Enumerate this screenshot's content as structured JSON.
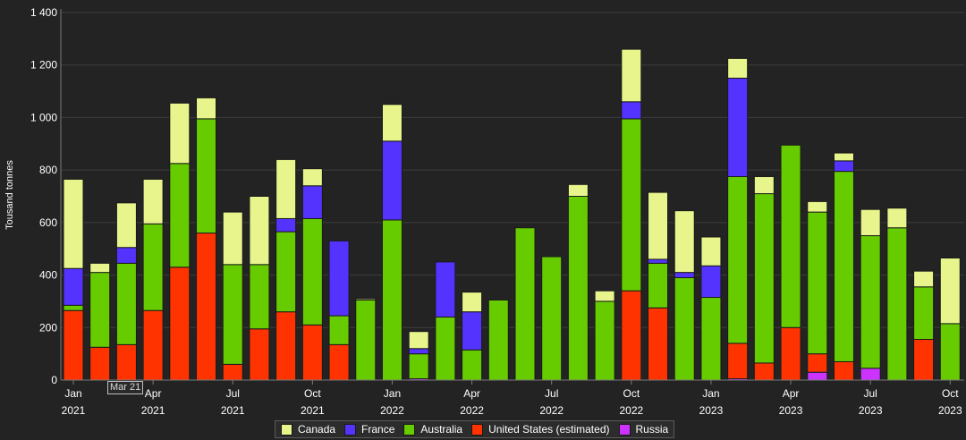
{
  "chart_data": {
    "type": "bar",
    "stacked": true,
    "ylabel": "Tousand tonnes",
    "ylim": [
      0,
      1400
    ],
    "yticks": [
      0,
      200,
      400,
      600,
      800,
      1000,
      1200,
      1400
    ],
    "ytick_labels": [
      "0",
      "200",
      "400",
      "600",
      "800",
      "1 000",
      "1 200",
      "1 400"
    ],
    "grid": true,
    "legend_position": "bottom-center",
    "categories": [
      "Jan 2021",
      "Feb 2021",
      "Mar 2021",
      "Apr 2021",
      "May 2021",
      "Jun 2021",
      "Jul 2021",
      "Aug 2021",
      "Sep 2021",
      "Oct 2021",
      "Nov 2021",
      "Dec 2021",
      "Jan 2022",
      "Feb 2022",
      "Mar 2022",
      "Apr 2022",
      "May 2022",
      "Jun 2022",
      "Jul 2022",
      "Aug 2022",
      "Sep 2022",
      "Oct 2022",
      "Nov 2022",
      "Dec 2022",
      "Jan 2023",
      "Feb 2023",
      "Mar 2023",
      "Apr 2023",
      "May 2023",
      "Jun 2023",
      "Jul 2023",
      "Aug 2023",
      "Sep 2023",
      "Oct 2023"
    ],
    "xticks": [
      {
        "index": 0,
        "month": "Jan",
        "year": "2021"
      },
      {
        "index": 3,
        "month": "Apr",
        "year": "2021"
      },
      {
        "index": 6,
        "month": "Jul",
        "year": "2021"
      },
      {
        "index": 9,
        "month": "Oct",
        "year": "2021"
      },
      {
        "index": 12,
        "month": "Jan",
        "year": "2022"
      },
      {
        "index": 15,
        "month": "Apr",
        "year": "2022"
      },
      {
        "index": 18,
        "month": "Jul",
        "year": "2022"
      },
      {
        "index": 21,
        "month": "Oct",
        "year": "2022"
      },
      {
        "index": 24,
        "month": "Jan",
        "year": "2023"
      },
      {
        "index": 27,
        "month": "Apr",
        "year": "2023"
      },
      {
        "index": 30,
        "month": "Jul",
        "year": "2023"
      },
      {
        "index": 33,
        "month": "Oct",
        "year": "2023"
      }
    ],
    "series": [
      {
        "name": "Russia",
        "color": "#cc33ff",
        "values": [
          0,
          0,
          0,
          0,
          0,
          0,
          0,
          0,
          0,
          0,
          0,
          0,
          0,
          5,
          0,
          0,
          0,
          0,
          0,
          0,
          0,
          0,
          0,
          0,
          0,
          5,
          0,
          0,
          30,
          0,
          45,
          0,
          0,
          0
        ]
      },
      {
        "name": "United States (estimated)",
        "color": "#ff3300",
        "values": [
          265,
          125,
          135,
          265,
          430,
          560,
          60,
          195,
          260,
          210,
          135,
          0,
          0,
          0,
          0,
          0,
          0,
          0,
          0,
          0,
          0,
          340,
          275,
          0,
          0,
          135,
          65,
          200,
          70,
          70,
          0,
          0,
          155,
          0
        ]
      },
      {
        "name": "Australia",
        "color": "#66cc00",
        "values": [
          20,
          285,
          310,
          330,
          395,
          435,
          380,
          245,
          305,
          405,
          110,
          305,
          610,
          95,
          240,
          115,
          305,
          580,
          470,
          700,
          300,
          655,
          170,
          390,
          315,
          635,
          645,
          695,
          540,
          725,
          505,
          580,
          200,
          215
        ]
      },
      {
        "name": "France",
        "color": "#5533ff",
        "values": [
          140,
          0,
          60,
          0,
          0,
          0,
          0,
          0,
          50,
          125,
          285,
          0,
          300,
          20,
          210,
          145,
          0,
          0,
          0,
          0,
          0,
          65,
          15,
          20,
          120,
          375,
          0,
          0,
          0,
          40,
          0,
          0,
          0,
          0
        ]
      },
      {
        "name": "Canada",
        "color": "#e8f58c",
        "values": [
          340,
          35,
          170,
          170,
          230,
          80,
          200,
          260,
          225,
          65,
          0,
          5,
          140,
          65,
          0,
          75,
          0,
          0,
          0,
          45,
          40,
          200,
          255,
          235,
          110,
          75,
          65,
          0,
          40,
          30,
          100,
          75,
          60,
          250
        ]
      }
    ],
    "tooltip": "Mar 21"
  },
  "legend": [
    {
      "name": "Canada",
      "color": "#e8f58c"
    },
    {
      "name": "France",
      "color": "#5533ff"
    },
    {
      "name": "Australia",
      "color": "#66cc00"
    },
    {
      "name": "United States (estimated)",
      "color": "#ff3300"
    },
    {
      "name": "Russia",
      "color": "#cc33ff"
    }
  ]
}
